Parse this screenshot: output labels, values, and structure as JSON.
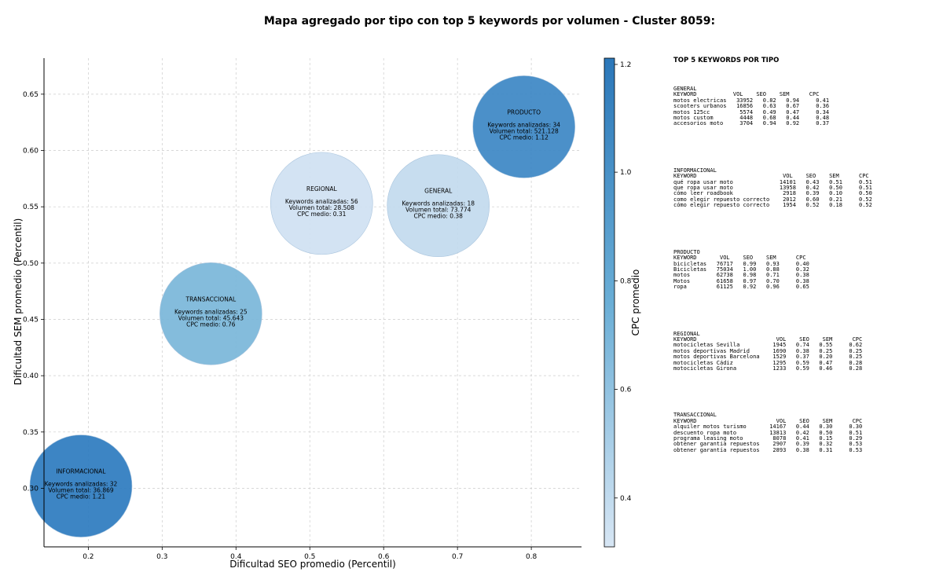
{
  "chart_data": {
    "type": "scatter",
    "title": "Mapa agregado por tipo con top 5 keywords por volumen - Cluster 8059:",
    "xlabel": "Dificultad SEO promedio (Percentil)",
    "ylabel": "Dificultad SEM promedio (Percentil)",
    "colorbar_label": "CPC promedio",
    "xlim": [
      0.14,
      0.868
    ],
    "ylim": [
      0.248,
      0.682
    ],
    "xticks": [
      "0.2",
      "0.3",
      "0.4",
      "0.5",
      "0.6",
      "0.7",
      "0.8"
    ],
    "yticks": [
      "0.30",
      "0.35",
      "0.40",
      "0.45",
      "0.50",
      "0.55",
      "0.60",
      "0.65"
    ],
    "cticks": [
      "0.4",
      "0.6",
      "0.8",
      "1.0",
      "1.2"
    ],
    "clim": [
      0.31,
      1.21
    ],
    "grid": true,
    "points": [
      {
        "name": "PRODUCTO",
        "x": 0.79,
        "y": 0.621,
        "kw_line": "Keywords analizadas: 34",
        "vol_line": "Volumen total: 521.128",
        "cpc_line": "CPC medio: 1.12",
        "cpc": 1.12,
        "keywords": 34
      },
      {
        "name": "REGIONAL",
        "x": 0.516,
        "y": 0.553,
        "kw_line": "Keywords analizadas: 56",
        "vol_line": "Volumen total: 28.508",
        "cpc_line": "CPC medio: 0.31",
        "cpc": 0.31,
        "keywords": 56
      },
      {
        "name": "GENERAL",
        "x": 0.674,
        "y": 0.551,
        "kw_line": "Keywords analizadas: 18",
        "vol_line": "Volumen total: 73.774",
        "cpc_line": "CPC medio: 0.38",
        "cpc": 0.38,
        "keywords": 18
      },
      {
        "name": "TRANSACCIONAL",
        "x": 0.366,
        "y": 0.455,
        "kw_line": "Keywords analizadas: 25",
        "vol_line": "Volumen total: 45.643",
        "cpc_line": "CPC medio: 0.76",
        "cpc": 0.76,
        "keywords": 25
      },
      {
        "name": "INFORMACIONAL",
        "x": 0.19,
        "y": 0.302,
        "kw_line": "Keywords analizadas: 32",
        "vol_line": "Volumen total: 36.869",
        "cpc_line": "CPC medio: 1.21",
        "cpc": 1.21,
        "keywords": 32
      }
    ]
  },
  "side_panel": {
    "title": "TOP 5 KEYWORDS POR TIPO",
    "blocks": [
      {
        "lines": [
          "GENERAL",
          "KEYWORD           VOL    SEO    SEM      CPC",
          "motos electricas   33952   0.82   0.94     0.41",
          "scooters urbanos   16856   0.63   0.67     0.36",
          "motos 125cc         5574   0.49   0.47     0.34",
          "motos custom        4448   0.68   0.44     0.48",
          "accesorios moto     3704   0.94   0.92     0.37"
        ]
      },
      {
        "lines": [
          "INFORMACIONAL",
          "KEYWORD                          VOL    SEO    SEM      CPC",
          "qué ropa usar moto              14101   0.43   0.51     0.51",
          "que ropa usar moto              13958   0.42   0.50     0.51",
          "cómo leer roadbook               2918   0.39   0.10     0.50",
          "como elegir repuesto correcto    2012   0.60   0.21     0.52",
          "cómo elegir repuesto correcto    1954   0.52   0.18     0.52"
        ]
      },
      {
        "lines": [
          "PRODUCTO",
          "KEYWORD       VOL    SEO    SEM      CPC",
          "bicicletas   76717   0.99   0.93     0.40",
          "Bicicletas   75034   1.00   0.88     0.32",
          "motos        62738   0.98   0.71     0.38",
          "Motos        61658   0.97   0.70     0.38",
          "ropa         61125   0.92   0.96     0.65"
        ]
      },
      {
        "lines": [
          "REGIONAL",
          "KEYWORD                        VOL    SEO    SEM      CPC",
          "motocicletas Sevilla          1945   0.74   0.55     0.62",
          "motos deportivas Madrid       1690   0.38   0.25     0.25",
          "motos deportivas Barcelona    1529   0.37   0.20     0.25",
          "motocicletas Cádiz            1295   0.59   0.47     0.28",
          "motocicletas Girona           1233   0.59   0.46     0.28"
        ]
      },
      {
        "lines": [
          "TRANSACCIONAL",
          "KEYWORD                        VOL    SEO    SEM      CPC",
          "alquiler motos turismo       14167   0.44   0.30     0.30",
          "descuento ropa moto          13813   0.42   0.50     0.51",
          "programa leasing moto         8078   0.41   0.15     0.29",
          "obtener garantia repuestos    2907   0.39   0.32     0.53",
          "obtener garantía repuestos    2893   0.38   0.31     0.53"
        ]
      }
    ]
  },
  "colors": {
    "low": "#cfe1f2",
    "mid": "#7ab6d9",
    "high": "#2d7bbf"
  }
}
